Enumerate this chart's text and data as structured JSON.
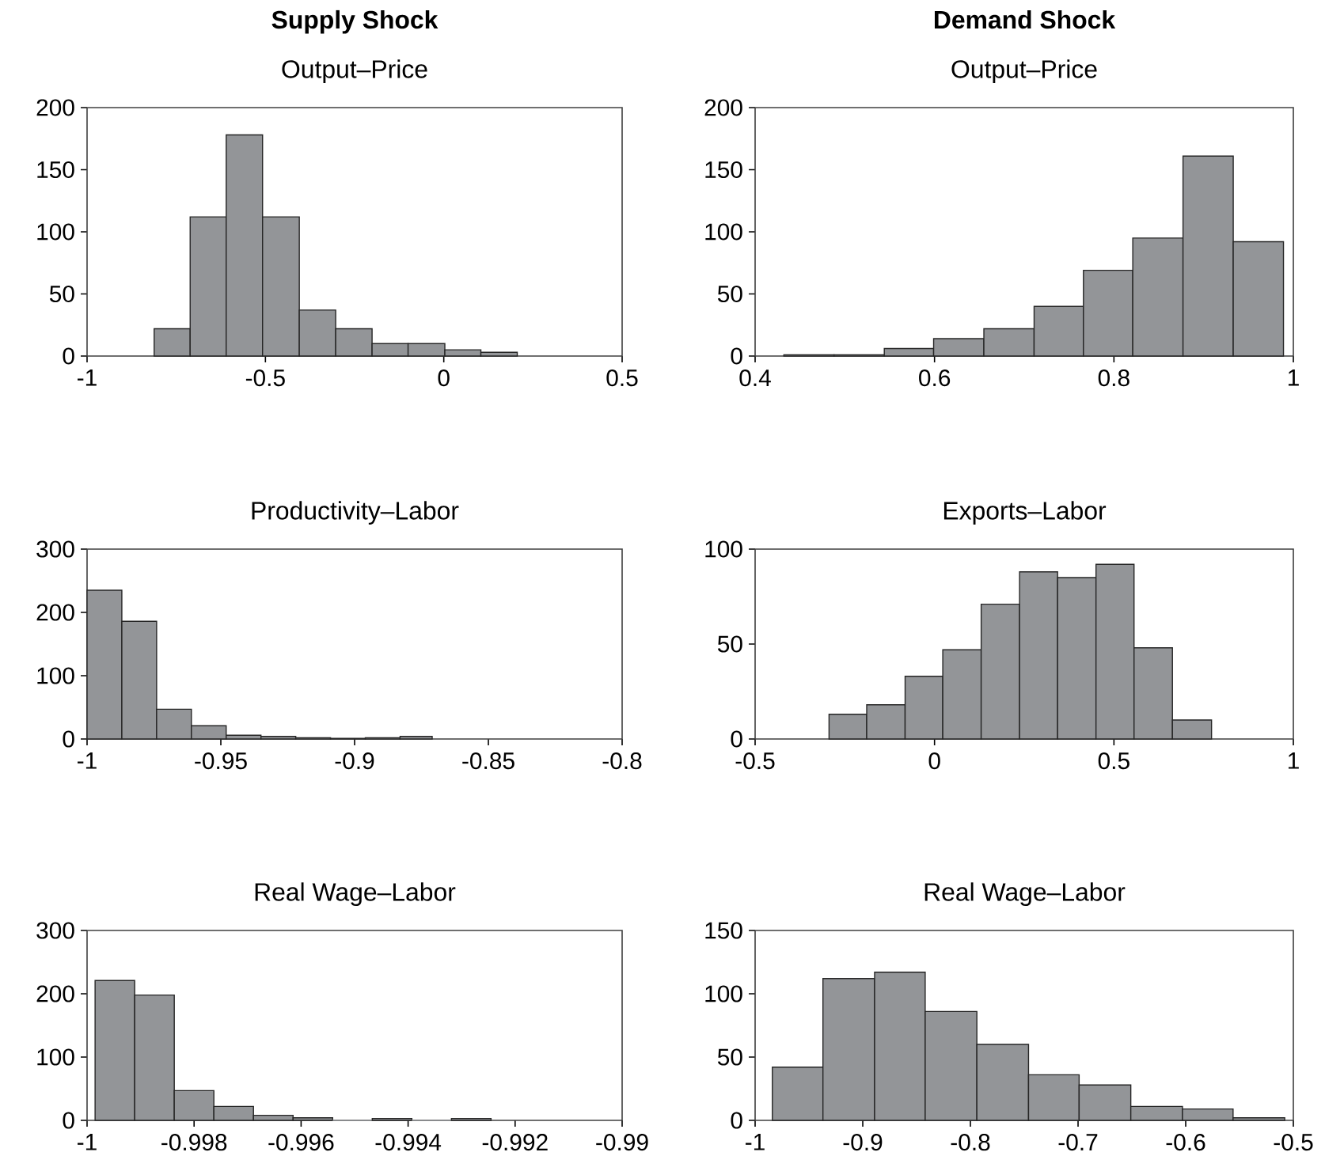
{
  "chart_data": [
    {
      "type": "histogram",
      "title": "Supply Shock",
      "subtitle": "Output–Price",
      "color": "#939598",
      "bins": [
        -0.812,
        -0.711,
        -0.61,
        -0.508,
        -0.405,
        -0.303,
        -0.201,
        -0.1,
        0.003,
        0.104,
        0.206
      ],
      "values": [
        22,
        112,
        178,
        112,
        37,
        22,
        10,
        10,
        5,
        3
      ],
      "xlim": [
        -1,
        0.5
      ],
      "xticks": [
        -1,
        -0.5,
        0,
        0.5
      ],
      "ylim": [
        0,
        200
      ],
      "yticks": [
        0,
        50,
        100,
        150,
        200
      ]
    },
    {
      "type": "histogram",
      "title": "Demand Shock",
      "subtitle": "Output–Price",
      "color": "#939598",
      "bins": [
        0.432,
        0.488,
        0.544,
        0.599,
        0.655,
        0.711,
        0.766,
        0.821,
        0.877,
        0.933,
        0.989
      ],
      "values": [
        1,
        1,
        6,
        14,
        22,
        40,
        69,
        95,
        161,
        92
      ],
      "xlim": [
        0.4,
        1
      ],
      "xticks": [
        0.4,
        0.6,
        0.8,
        1
      ],
      "ylim": [
        0,
        200
      ],
      "yticks": [
        0,
        50,
        100,
        150,
        200
      ]
    },
    {
      "type": "histogram",
      "subtitle": "Productivity–Labor",
      "color": "#939598",
      "bins": [
        -1.0,
        -0.987,
        -0.974,
        -0.961,
        -0.948,
        -0.935,
        -0.922,
        -0.909,
        -0.896,
        -0.883,
        -0.871
      ],
      "values": [
        235,
        186,
        47,
        21,
        6,
        4,
        2,
        1,
        2,
        4
      ],
      "xlim": [
        -1,
        -0.8
      ],
      "xticks": [
        -1,
        -0.95,
        -0.9,
        -0.85,
        -0.8
      ],
      "ylim": [
        0,
        300
      ],
      "yticks": [
        0,
        100,
        200,
        300
      ]
    },
    {
      "type": "histogram",
      "subtitle": "Exports–Labor",
      "color": "#939598",
      "bins": [
        -0.294,
        -0.189,
        -0.082,
        0.023,
        0.13,
        0.237,
        0.343,
        0.45,
        0.556,
        0.663,
        0.772
      ],
      "values": [
        13,
        18,
        33,
        47,
        71,
        88,
        85,
        92,
        48,
        10
      ],
      "xlim": [
        -0.5,
        1
      ],
      "xticks": [
        -0.5,
        0,
        0.5,
        1
      ],
      "ylim": [
        0,
        100
      ],
      "yticks": [
        0,
        50,
        100
      ]
    },
    {
      "type": "histogram",
      "subtitle": "Real Wage–Labor",
      "color": "#939598",
      "bins": [
        -0.99985,
        -0.99911,
        -0.99837,
        -0.99763,
        -0.99689,
        -0.99615,
        -0.99541,
        -0.99467,
        -0.99393,
        -0.99319,
        -0.99245
      ],
      "values": [
        221,
        198,
        47,
        22,
        8,
        4,
        0,
        3,
        0,
        3
      ],
      "xlim": [
        -1,
        -0.99
      ],
      "xticks": [
        -1,
        -0.998,
        -0.996,
        -0.994,
        -0.992,
        -0.99
      ],
      "ylim": [
        0,
        300
      ],
      "yticks": [
        0,
        100,
        200,
        300
      ]
    },
    {
      "type": "histogram",
      "subtitle": "Real Wage–Labor",
      "color": "#939598",
      "bins": [
        -0.984,
        -0.937,
        -0.889,
        -0.842,
        -0.794,
        -0.746,
        -0.699,
        -0.651,
        -0.603,
        -0.556,
        -0.508
      ],
      "values": [
        42,
        112,
        117,
        86,
        60,
        36,
        28,
        11,
        9,
        2
      ],
      "xlim": [
        -1,
        -0.5
      ],
      "xticks": [
        -1,
        -0.9,
        -0.8,
        -0.7,
        -0.6,
        -0.5
      ],
      "ylim": [
        0,
        150
      ],
      "yticks": [
        0,
        50,
        100,
        150
      ]
    }
  ]
}
